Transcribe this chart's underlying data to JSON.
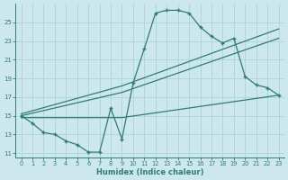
{
  "xlabel": "Humidex (Indice chaleur)",
  "bg_color": "#cde8ec",
  "grid_color": "#b0d8dc",
  "line_color": "#2e7d72",
  "xlim": [
    -0.5,
    23.5
  ],
  "ylim": [
    10.5,
    27
  ],
  "xticks": [
    0,
    1,
    2,
    3,
    4,
    5,
    6,
    7,
    8,
    9,
    10,
    11,
    12,
    13,
    14,
    15,
    16,
    17,
    18,
    19,
    20,
    21,
    22,
    23
  ],
  "yticks": [
    11,
    13,
    15,
    17,
    19,
    21,
    23,
    25
  ],
  "line1_x": [
    0,
    1,
    2,
    3,
    4,
    5,
    6,
    7,
    8,
    9,
    10,
    11,
    12,
    13,
    14,
    15,
    16,
    17,
    18,
    19,
    20,
    21,
    22,
    23
  ],
  "line1_y": [
    15.0,
    14.2,
    13.2,
    13.0,
    12.3,
    11.9,
    11.1,
    11.1,
    15.8,
    12.5,
    18.5,
    22.2,
    26.0,
    26.3,
    26.3,
    26.0,
    24.5,
    23.5,
    22.8,
    23.3,
    19.2,
    18.3,
    18.0,
    17.2
  ],
  "line2_x": [
    0,
    9,
    23
  ],
  "line2_y": [
    15.0,
    17.5,
    23.3
  ],
  "line3_x": [
    0,
    9,
    23
  ],
  "line3_y": [
    15.2,
    18.2,
    24.3
  ],
  "line4_x": [
    0,
    9,
    23
  ],
  "line4_y": [
    14.8,
    14.8,
    17.2
  ]
}
